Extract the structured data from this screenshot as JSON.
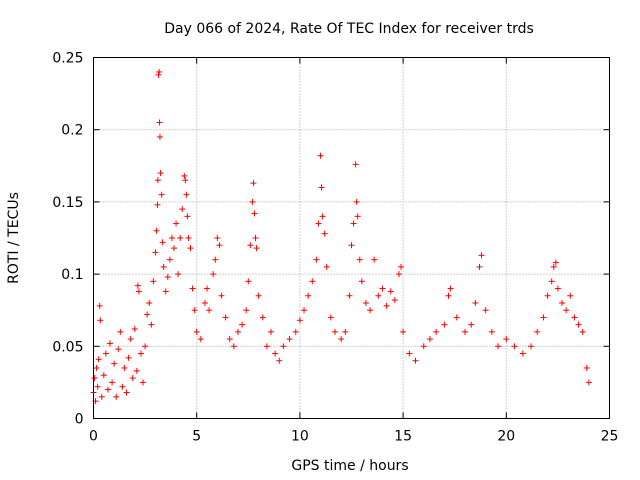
{
  "chart_data": {
    "type": "scatter",
    "title": "Day 066 of 2024, Rate Of TEC Index for receiver trds",
    "xlabel": "GPS time / hours",
    "ylabel": "ROTI / TECUs",
    "xlim": [
      0,
      25
    ],
    "ylim": [
      0,
      0.25
    ],
    "x_ticks": [
      0,
      5,
      10,
      15,
      20,
      25
    ],
    "x_tick_labels": [
      "0",
      "5",
      "10",
      "15",
      "20",
      "25"
    ],
    "y_ticks": [
      0,
      0.05,
      0.1,
      0.15,
      0.2,
      0.25
    ],
    "y_tick_labels": [
      "0",
      "0.05",
      "0.1",
      "0.15",
      "0.2",
      "0.25"
    ],
    "grid": true,
    "marker": "+",
    "marker_color": "#ff0000",
    "series": [
      {
        "name": "ROTI",
        "points": [
          [
            0.0,
            0.018
          ],
          [
            0.05,
            0.028
          ],
          [
            0.1,
            0.012
          ],
          [
            0.15,
            0.035
          ],
          [
            0.2,
            0.022
          ],
          [
            0.25,
            0.041
          ],
          [
            0.3,
            0.078
          ],
          [
            0.33,
            0.068
          ],
          [
            0.4,
            0.015
          ],
          [
            0.5,
            0.03
          ],
          [
            0.6,
            0.045
          ],
          [
            0.7,
            0.02
          ],
          [
            0.8,
            0.052
          ],
          [
            0.9,
            0.025
          ],
          [
            1.0,
            0.038
          ],
          [
            1.1,
            0.015
          ],
          [
            1.2,
            0.048
          ],
          [
            1.3,
            0.06
          ],
          [
            1.4,
            0.022
          ],
          [
            1.5,
            0.035
          ],
          [
            1.6,
            0.018
          ],
          [
            1.7,
            0.042
          ],
          [
            1.8,
            0.055
          ],
          [
            1.9,
            0.028
          ],
          [
            2.0,
            0.062
          ],
          [
            2.1,
            0.033
          ],
          [
            2.15,
            0.092
          ],
          [
            2.2,
            0.088
          ],
          [
            2.3,
            0.045
          ],
          [
            2.4,
            0.025
          ],
          [
            2.5,
            0.05
          ],
          [
            2.6,
            0.072
          ],
          [
            2.7,
            0.08
          ],
          [
            2.8,
            0.065
          ],
          [
            2.9,
            0.095
          ],
          [
            3.0,
            0.115
          ],
          [
            3.05,
            0.13
          ],
          [
            3.1,
            0.148
          ],
          [
            3.12,
            0.165
          ],
          [
            3.15,
            0.238
          ],
          [
            3.18,
            0.24
          ],
          [
            3.2,
            0.205
          ],
          [
            3.22,
            0.195
          ],
          [
            3.25,
            0.17
          ],
          [
            3.3,
            0.155
          ],
          [
            3.35,
            0.122
          ],
          [
            3.4,
            0.105
          ],
          [
            3.5,
            0.088
          ],
          [
            3.6,
            0.098
          ],
          [
            3.7,
            0.11
          ],
          [
            3.8,
            0.125
          ],
          [
            3.9,
            0.118
          ],
          [
            4.0,
            0.135
          ],
          [
            4.1,
            0.1
          ],
          [
            4.2,
            0.125
          ],
          [
            4.3,
            0.145
          ],
          [
            4.4,
            0.168
          ],
          [
            4.45,
            0.165
          ],
          [
            4.5,
            0.155
          ],
          [
            4.55,
            0.14
          ],
          [
            4.6,
            0.125
          ],
          [
            4.7,
            0.118
          ],
          [
            4.8,
            0.09
          ],
          [
            4.9,
            0.075
          ],
          [
            5.0,
            0.06
          ],
          [
            5.2,
            0.055
          ],
          [
            5.4,
            0.08
          ],
          [
            5.5,
            0.09
          ],
          [
            5.6,
            0.075
          ],
          [
            5.8,
            0.1
          ],
          [
            5.9,
            0.11
          ],
          [
            6.0,
            0.125
          ],
          [
            6.1,
            0.12
          ],
          [
            6.2,
            0.085
          ],
          [
            6.4,
            0.07
          ],
          [
            6.6,
            0.055
          ],
          [
            6.8,
            0.05
          ],
          [
            7.0,
            0.06
          ],
          [
            7.2,
            0.065
          ],
          [
            7.4,
            0.075
          ],
          [
            7.5,
            0.095
          ],
          [
            7.6,
            0.12
          ],
          [
            7.7,
            0.15
          ],
          [
            7.75,
            0.163
          ],
          [
            7.8,
            0.142
          ],
          [
            7.85,
            0.125
          ],
          [
            7.9,
            0.118
          ],
          [
            8.0,
            0.085
          ],
          [
            8.2,
            0.07
          ],
          [
            8.4,
            0.05
          ],
          [
            8.6,
            0.06
          ],
          [
            8.8,
            0.045
          ],
          [
            9.0,
            0.04
          ],
          [
            9.2,
            0.05
          ],
          [
            9.5,
            0.055
          ],
          [
            9.8,
            0.06
          ],
          [
            10.0,
            0.068
          ],
          [
            10.2,
            0.075
          ],
          [
            10.4,
            0.085
          ],
          [
            10.6,
            0.095
          ],
          [
            10.8,
            0.11
          ],
          [
            10.9,
            0.135
          ],
          [
            11.0,
            0.182
          ],
          [
            11.05,
            0.16
          ],
          [
            11.1,
            0.14
          ],
          [
            11.2,
            0.128
          ],
          [
            11.3,
            0.105
          ],
          [
            11.5,
            0.07
          ],
          [
            11.7,
            0.06
          ],
          [
            12.0,
            0.055
          ],
          [
            12.2,
            0.06
          ],
          [
            12.4,
            0.085
          ],
          [
            12.5,
            0.12
          ],
          [
            12.6,
            0.135
          ],
          [
            12.7,
            0.176
          ],
          [
            12.75,
            0.15
          ],
          [
            12.8,
            0.14
          ],
          [
            12.9,
            0.11
          ],
          [
            13.0,
            0.095
          ],
          [
            13.2,
            0.08
          ],
          [
            13.4,
            0.075
          ],
          [
            13.6,
            0.11
          ],
          [
            13.8,
            0.085
          ],
          [
            14.0,
            0.09
          ],
          [
            14.2,
            0.078
          ],
          [
            14.4,
            0.088
          ],
          [
            14.6,
            0.082
          ],
          [
            14.8,
            0.1
          ],
          [
            14.9,
            0.105
          ],
          [
            15.0,
            0.06
          ],
          [
            15.3,
            0.045
          ],
          [
            15.6,
            0.04
          ],
          [
            16.0,
            0.05
          ],
          [
            16.3,
            0.055
          ],
          [
            16.6,
            0.06
          ],
          [
            17.0,
            0.065
          ],
          [
            17.2,
            0.085
          ],
          [
            17.3,
            0.09
          ],
          [
            17.6,
            0.07
          ],
          [
            18.0,
            0.06
          ],
          [
            18.3,
            0.065
          ],
          [
            18.5,
            0.08
          ],
          [
            18.7,
            0.105
          ],
          [
            18.8,
            0.113
          ],
          [
            19.0,
            0.075
          ],
          [
            19.3,
            0.06
          ],
          [
            19.6,
            0.05
          ],
          [
            20.0,
            0.055
          ],
          [
            20.4,
            0.05
          ],
          [
            20.8,
            0.045
          ],
          [
            21.2,
            0.05
          ],
          [
            21.5,
            0.06
          ],
          [
            21.8,
            0.07
          ],
          [
            22.0,
            0.085
          ],
          [
            22.2,
            0.095
          ],
          [
            22.3,
            0.105
          ],
          [
            22.4,
            0.108
          ],
          [
            22.5,
            0.09
          ],
          [
            22.7,
            0.08
          ],
          [
            22.9,
            0.075
          ],
          [
            23.1,
            0.085
          ],
          [
            23.3,
            0.07
          ],
          [
            23.5,
            0.065
          ],
          [
            23.7,
            0.06
          ],
          [
            23.9,
            0.035
          ],
          [
            24.0,
            0.025
          ]
        ]
      }
    ]
  }
}
